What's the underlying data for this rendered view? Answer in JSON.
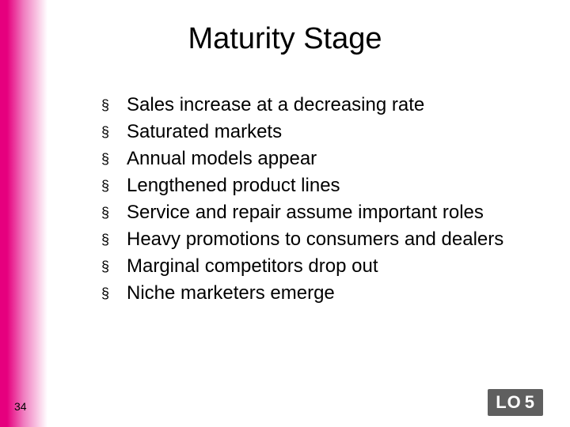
{
  "slide": {
    "title": "Maturity Stage",
    "number": "34",
    "background_color": "#ffffff",
    "text_color": "#000000",
    "title_fontsize": 38,
    "body_fontsize": 24,
    "gradient": {
      "start": "#e6007e",
      "mid": "#f07dc0",
      "end": "#ffffff"
    }
  },
  "bullets": {
    "marker": "§",
    "items": [
      "Sales increase at a decreasing rate",
      "Saturated markets",
      "Annual models appear",
      "Lengthened product lines",
      "Service and repair assume important roles",
      "Heavy promotions to consumers and dealers",
      "Marginal competitors drop out",
      "Niche marketers emerge"
    ]
  },
  "badge": {
    "prefix": "LO",
    "number": "5",
    "bg_color": "#5f5f5f",
    "text_color": "#ffffff"
  }
}
